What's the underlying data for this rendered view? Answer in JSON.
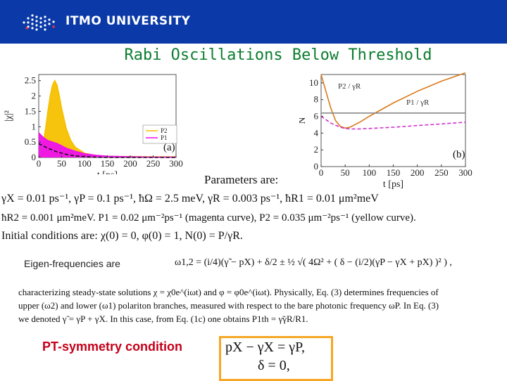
{
  "header": {
    "brand": "ITMO UNIVERSITY",
    "bg_color": "#0b3aa8",
    "logo_icon": "itmo-dot-grid-icon"
  },
  "slide": {
    "title": "Rabi Oscillations Below Threshold",
    "title_color": "#0b7d2e",
    "params_heading": "Parameters are:",
    "params_line1": "γX = 0.01 ps⁻¹, γP = 0.1 ps⁻¹, ħΩ = 2.5 meV, γR = 0.003 ps⁻¹, ħR1 = 0.01 μm²meV",
    "params_line2": "ħR2 = 0.001 μm²meV. P1 = 0.02 μm⁻²ps⁻¹ (magenta curve), P2 = 0.035 μm⁻²ps⁻¹ (yellow curve).",
    "initial_conditions": "Initial conditions are: χ(0) = 0, φ(0) = 1, N(0) = P/γR.",
    "eigen_label": "Eigen-frequencies are",
    "eigen_formula": "ω1,2 = (i/4)(γ̃ − pX) + δ/2 ± ½ √( 4Ω² + ( δ − (i/2)(γP − γX + pX) )² ) ,",
    "para_line1": "characterizing steady-state solutions χ = χ0e^(iωt) and φ = φ0e^(iωt). Physically, Eq. (3) determines frequencies of",
    "para_line2": "upper (ω2) and lower (ω1) polariton branches, measured with respect to the bare photonic frequency ωP. In Eq. (3)",
    "para_line3": "we denoted γ̃ = γP + γX. In this case, from Eq. (1c) one obtains P1th = γ̃γR/R1.",
    "pt_label": "PT-symmetry condition",
    "pt_eq1": "pX − γX = γP,",
    "pt_eq2": "δ = 0,",
    "pt_label_color": "#c4001a",
    "pt_box_color": "#f6a623"
  },
  "chart_data": [
    {
      "type": "area",
      "panel_label": "(a)",
      "xlabel": "t [ps]",
      "ylabel": "|χ|²",
      "x_ticks": [
        0,
        50,
        100,
        150,
        200,
        250,
        300
      ],
      "y_ticks": [
        0.0,
        0.5,
        1.0,
        1.5,
        2.0,
        2.5
      ],
      "xlim": [
        0,
        300
      ],
      "ylim": [
        0,
        2.7
      ],
      "legend": [
        "P2",
        "P1"
      ],
      "legend_position": "right",
      "series": [
        {
          "name": "P2",
          "color": "#f5c000",
          "x": [
            0,
            5,
            10,
            15,
            20,
            25,
            30,
            35,
            40,
            45,
            50,
            60,
            70,
            80,
            100,
            125,
            150,
            175,
            200,
            250,
            300
          ],
          "values": [
            0,
            0.15,
            0.5,
            0.95,
            1.5,
            2.0,
            2.35,
            2.5,
            2.35,
            2.0,
            1.6,
            0.95,
            0.55,
            0.33,
            0.14,
            0.06,
            0.04,
            0.03,
            0.03,
            0.02,
            0.02
          ]
        },
        {
          "name": "P1",
          "color": "#ee10ee",
          "x": [
            0,
            10,
            20,
            30,
            40,
            50,
            60,
            80,
            100,
            125,
            150,
            175,
            200,
            250,
            300
          ],
          "values": [
            0.8,
            0.65,
            0.55,
            0.5,
            0.45,
            0.38,
            0.3,
            0.2,
            0.12,
            0.07,
            0.04,
            0.03,
            0.02,
            0.01,
            0.01
          ]
        },
        {
          "name": "",
          "color": "#111111",
          "x": [
            0,
            20,
            40,
            60,
            80,
            100,
            125,
            150,
            200,
            300
          ],
          "values": [
            0.45,
            0.3,
            0.18,
            0.1,
            0.05,
            0.03,
            0.01,
            0.0,
            0.0,
            0.0
          ]
        }
      ]
    },
    {
      "type": "line",
      "panel_label": "(b)",
      "xlabel": "t [ps]",
      "ylabel": "N",
      "x_ticks": [
        0,
        50,
        100,
        150,
        200,
        250,
        300
      ],
      "y_ticks": [
        0,
        2,
        4,
        6,
        8,
        10
      ],
      "xlim": [
        0,
        300
      ],
      "ylim": [
        0,
        11
      ],
      "annotations": [
        "P2 / γR",
        "P1 / γR"
      ],
      "series": [
        {
          "name": "",
          "color": "#d97a1c",
          "x": [
            0,
            10,
            20,
            30,
            40,
            50,
            60,
            80,
            100,
            150,
            200,
            250,
            300
          ],
          "values": [
            11,
            9,
            7,
            5.5,
            4.8,
            4.6,
            4.7,
            5.3,
            6.0,
            7.6,
            9.0,
            10.2,
            11.2
          ]
        },
        {
          "name": "",
          "color": "#cc33cc",
          "x": [
            0,
            20,
            40,
            50,
            60,
            80,
            100,
            150,
            200,
            250,
            300
          ],
          "values": [
            6.0,
            5.2,
            4.7,
            4.55,
            4.5,
            4.5,
            4.55,
            4.7,
            4.9,
            5.1,
            5.3
          ]
        },
        {
          "name": "",
          "color": "#888888",
          "x": [
            0,
            300
          ],
          "values": [
            6.4,
            6.4
          ]
        }
      ]
    }
  ]
}
